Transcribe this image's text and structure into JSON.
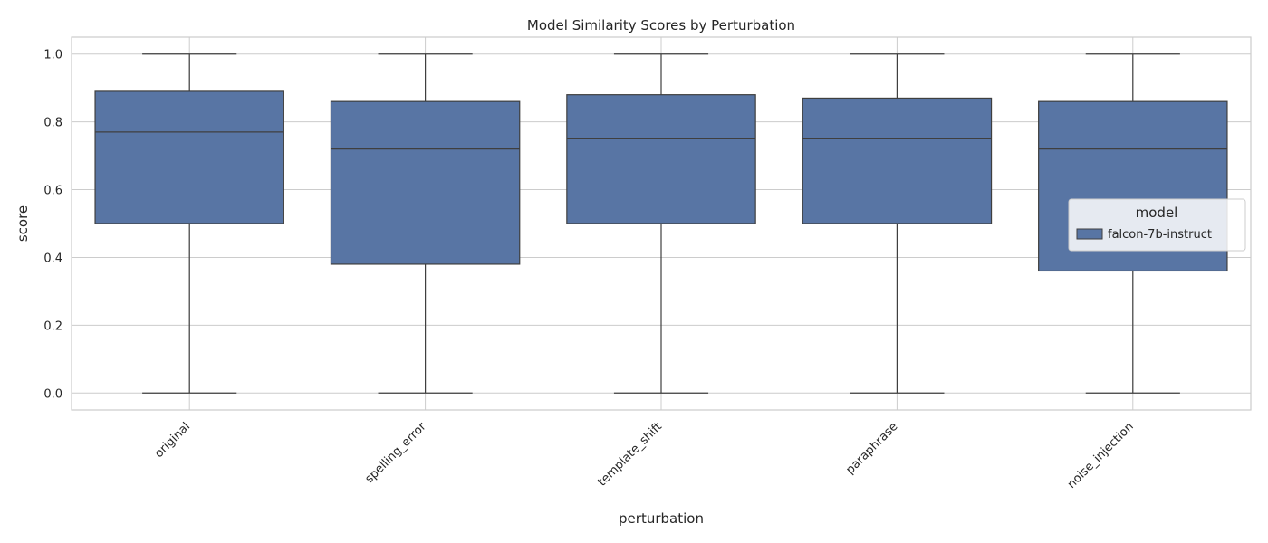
{
  "chart_data": {
    "type": "box",
    "title": "Model Similarity Scores by Perturbation",
    "xlabel": "perturbation",
    "ylabel": "score",
    "ylim": [
      -0.05,
      1.05
    ],
    "yticks": [
      0.0,
      0.2,
      0.4,
      0.6,
      0.8,
      1.0
    ],
    "ytick_labels": [
      "0.0",
      "0.2",
      "0.4",
      "0.6",
      "0.8",
      "1.0"
    ],
    "categories": [
      "original",
      "spelling_error",
      "template_shift",
      "paraphrase",
      "noise_injection"
    ],
    "grid": true,
    "legend": {
      "title": "model",
      "placement": "right"
    },
    "series": [
      {
        "name": "falcon-7b-instruct",
        "color": "#5875a4",
        "boxes": [
          {
            "min": 0.0,
            "q1": 0.5,
            "median": 0.77,
            "q3": 0.89,
            "max": 1.0
          },
          {
            "min": 0.0,
            "q1": 0.38,
            "median": 0.72,
            "q3": 0.86,
            "max": 1.0
          },
          {
            "min": 0.0,
            "q1": 0.5,
            "median": 0.75,
            "q3": 0.88,
            "max": 1.0
          },
          {
            "min": 0.0,
            "q1": 0.5,
            "median": 0.75,
            "q3": 0.87,
            "max": 1.0
          },
          {
            "min": 0.0,
            "q1": 0.36,
            "median": 0.72,
            "q3": 0.86,
            "max": 1.0
          }
        ]
      }
    ]
  }
}
